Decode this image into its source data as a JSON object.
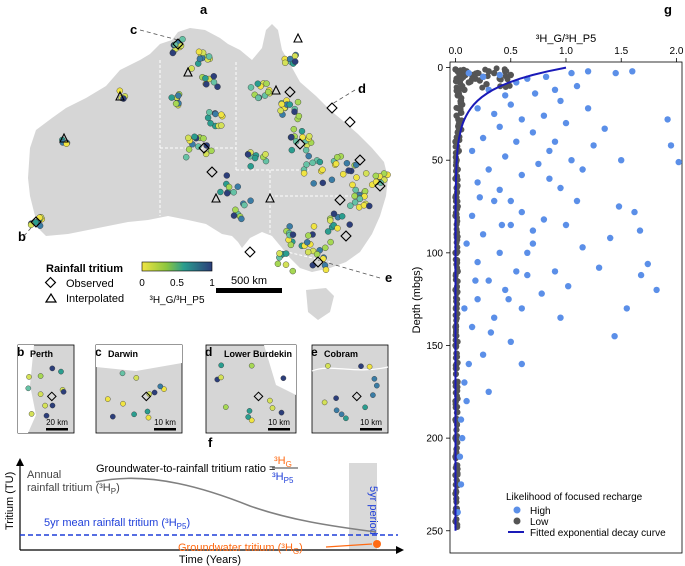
{
  "panel_labels": {
    "a": "a",
    "b": "b",
    "c": "c",
    "d": "d",
    "e": "e",
    "f": "f",
    "g": "g"
  },
  "map": {
    "legend": {
      "title": "Rainfall tritium",
      "observed": "Observed",
      "interpolated": "Interpolated",
      "colorbar_ticks": [
        "0",
        "0.5",
        "1"
      ],
      "colorbar_label_main": "H",
      "colorbar_label": "³H_G/³H_P5"
    },
    "scale_bar": "500 km",
    "colors": {
      "land": "#d6d6d6",
      "ocean": "#ffffff",
      "low": "#f0e442",
      "mid": "#2a9d8f",
      "high": "#2c3e7a"
    }
  },
  "insets": [
    {
      "id": "b",
      "name": "Perth",
      "scale": "20 km"
    },
    {
      "id": "c",
      "name": "Darwin",
      "scale": "10 km"
    },
    {
      "id": "d",
      "name": "Lower Burdekin",
      "scale": "10 km"
    },
    {
      "id": "e",
      "name": "Cobram",
      "scale": "10 km"
    }
  ],
  "schematic": {
    "ylabel": "Tritium (TU)",
    "xlabel": "Time (Years)",
    "annual_label_line1": "Annual",
    "annual_label_line2": "rainfall tritium (³H",
    "annual_sub": "P",
    "ratio_text": "Groundwater-to-rainfall tritium ratio =",
    "ratio_num": "³H",
    "ratio_num_sub": "G",
    "ratio_den": "³H",
    "ratio_den_sub": "P5",
    "mean_label": "5yr mean rainfall tritium (³H",
    "mean_sub": "P5",
    "gw_label": "Groundwater tritium (³H",
    "gw_sub": "G",
    "period_label": "5yr period",
    "colors": {
      "rain": "#808080",
      "mean": "#1f3fd9",
      "gw": "#ff6a13",
      "period": "#d9d9d9"
    }
  },
  "chart_data": {
    "type": "scatter",
    "title": "³H_G/³H_P5",
    "xlabel": "³H_G/³H_P5",
    "ylabel": "Depth (mbgs)",
    "xlim": [
      -0.05,
      2.05
    ],
    "ylim": [
      262,
      -3
    ],
    "xticks": [
      0.0,
      0.5,
      1.0,
      1.5,
      2.0
    ],
    "xtick_labels": [
      "0.0",
      "0.5",
      "1.0",
      "1.5",
      "2.0"
    ],
    "yticks": [
      0,
      50,
      100,
      150,
      200,
      250
    ],
    "legend": {
      "title": "Likelihood of focused recharge",
      "high": "High",
      "low": "Low",
      "curve": "Fitted exponential decay curve"
    },
    "colors": {
      "high": "#5b8fe8",
      "low": "#555555",
      "curve": "#1a1ab8"
    },
    "series": [
      {
        "name": "High",
        "points": [
          [
            0.12,
            3
          ],
          [
            0.25,
            5
          ],
          [
            0.4,
            4
          ],
          [
            0.55,
            8
          ],
          [
            0.65,
            6
          ],
          [
            0.82,
            5
          ],
          [
            0.9,
            12
          ],
          [
            1.05,
            3
          ],
          [
            1.2,
            2
          ],
          [
            1.45,
            3
          ],
          [
            1.6,
            2
          ],
          [
            0.3,
            12
          ],
          [
            0.45,
            15
          ],
          [
            0.72,
            14
          ],
          [
            0.5,
            20
          ],
          [
            0.95,
            18
          ],
          [
            1.1,
            10
          ],
          [
            0.2,
            22
          ],
          [
            0.35,
            25
          ],
          [
            0.6,
            28
          ],
          [
            0.8,
            26
          ],
          [
            0.4,
            32
          ],
          [
            0.7,
            35
          ],
          [
            1.0,
            30
          ],
          [
            0.25,
            38
          ],
          [
            0.55,
            40
          ],
          [
            0.9,
            40
          ],
          [
            1.2,
            22
          ],
          [
            0.15,
            45
          ],
          [
            0.45,
            48
          ],
          [
            0.75,
            52
          ],
          [
            0.3,
            55
          ],
          [
            0.6,
            58
          ],
          [
            0.2,
            62
          ],
          [
            0.4,
            66
          ],
          [
            0.85,
            60
          ],
          [
            0.35,
            72
          ],
          [
            0.6,
            78
          ],
          [
            0.15,
            80
          ],
          [
            0.5,
            85
          ],
          [
            0.25,
            90
          ],
          [
            0.7,
            95
          ],
          [
            0.4,
            100
          ],
          [
            0.2,
            105
          ],
          [
            0.55,
            110
          ],
          [
            0.3,
            115
          ],
          [
            0.45,
            120
          ],
          [
            0.2,
            125
          ],
          [
            0.6,
            130
          ],
          [
            0.35,
            135
          ],
          [
            0.15,
            140
          ],
          [
            0.5,
            148
          ],
          [
            0.25,
            155
          ],
          [
            0.12,
            160
          ],
          [
            0.08,
            170
          ],
          [
            0.1,
            180
          ],
          [
            0.05,
            190
          ],
          [
            0.06,
            200
          ],
          [
            0.04,
            210
          ],
          [
            0.05,
            225
          ],
          [
            0.02,
            240
          ],
          [
            1.35,
            33
          ],
          [
            1.25,
            42
          ],
          [
            1.05,
            50
          ],
          [
            1.15,
            55
          ],
          [
            0.95,
            65
          ],
          [
            1.1,
            72
          ],
          [
            0.8,
            82
          ],
          [
            0.7,
            88
          ],
          [
            1.0,
            85
          ],
          [
            0.9,
            110
          ],
          [
            1.4,
            92
          ],
          [
            1.92,
            28
          ],
          [
            1.95,
            42
          ],
          [
            2.02,
            51
          ],
          [
            1.62,
            78
          ],
          [
            1.67,
            88
          ],
          [
            1.74,
            106
          ],
          [
            1.68,
            112
          ],
          [
            1.82,
            120
          ],
          [
            1.48,
            75
          ],
          [
            1.44,
            145
          ],
          [
            1.55,
            130
          ],
          [
            0.32,
            143
          ],
          [
            0.48,
            125
          ],
          [
            0.65,
            112
          ],
          [
            1.02,
            118
          ],
          [
            0.22,
            70
          ],
          [
            0.1,
            95
          ],
          [
            0.08,
            130
          ],
          [
            0.65,
            100
          ],
          [
            0.78,
            122
          ],
          [
            1.15,
            97
          ],
          [
            1.3,
            108
          ],
          [
            0.5,
            72
          ],
          [
            0.85,
            45
          ],
          [
            1.5,
            50
          ],
          [
            0.18,
            115
          ],
          [
            0.42,
            85
          ],
          [
            0.95,
            135
          ],
          [
            0.6,
            160
          ],
          [
            0.3,
            175
          ]
        ]
      },
      {
        "name": "Low",
        "points": [
          [
            0.0,
            1
          ],
          [
            0.02,
            2
          ],
          [
            0.05,
            3
          ],
          [
            0.1,
            2
          ],
          [
            0.15,
            4
          ],
          [
            0.2,
            3
          ],
          [
            0.25,
            5
          ],
          [
            0.3,
            2
          ],
          [
            0.01,
            6
          ],
          [
            0.04,
            8
          ],
          [
            0.06,
            10
          ],
          [
            0.08,
            12
          ],
          [
            0.02,
            15
          ],
          [
            0.05,
            18
          ],
          [
            0.03,
            22
          ],
          [
            0.01,
            26
          ],
          [
            0.04,
            30
          ],
          [
            0.02,
            35
          ],
          [
            0.0,
            40
          ],
          [
            0.03,
            45
          ],
          [
            0.01,
            50
          ],
          [
            0.02,
            55
          ],
          [
            0.0,
            60
          ],
          [
            0.01,
            65
          ],
          [
            0.0,
            70
          ],
          [
            0.02,
            75
          ],
          [
            0.0,
            80
          ],
          [
            0.01,
            90
          ],
          [
            0.0,
            100
          ],
          [
            0.02,
            110
          ],
          [
            0.0,
            120
          ],
          [
            0.01,
            130
          ],
          [
            0.0,
            140
          ],
          [
            0.0,
            150
          ],
          [
            0.01,
            160
          ],
          [
            0.0,
            170
          ],
          [
            0.0,
            180
          ],
          [
            0.0,
            190
          ],
          [
            0.0,
            200
          ],
          [
            0.0,
            210
          ],
          [
            0.0,
            220
          ],
          [
            0.0,
            230
          ],
          [
            0.0,
            240
          ],
          [
            0.0,
            245
          ],
          [
            0.35,
            3
          ],
          [
            0.4,
            6
          ],
          [
            0.12,
            8
          ],
          [
            0.18,
            6
          ],
          [
            0.07,
            5
          ],
          [
            0.22,
            7
          ],
          [
            0.28,
            9
          ],
          [
            0.03,
            14
          ],
          [
            0.06,
            20
          ],
          [
            0.09,
            4
          ],
          [
            0.45,
            2
          ],
          [
            0.5,
            4
          ]
        ]
      }
    ],
    "curve": {
      "name": "Fitted exponential decay curve",
      "a": 1.0,
      "k": 0.09
    }
  }
}
